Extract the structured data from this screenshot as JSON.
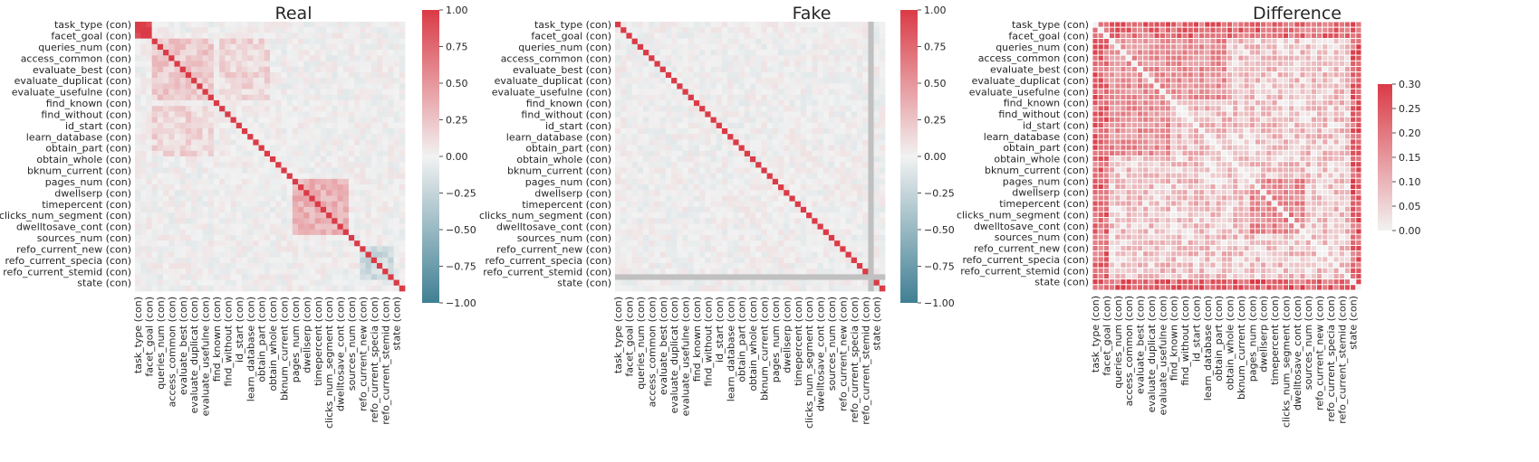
{
  "chart_data": {
    "type": "heatmap",
    "variables": [
      "task_type (con)",
      "facet_goal (con)",
      "queries_num (con)",
      "access_common (con)",
      "evaluate_best (con)",
      "evaluate_duplicat (con)",
      "evaluate_usefulne (con)",
      "find_known (con)",
      "find_without (con)",
      "id_start (con)",
      "learn_database (con)",
      "obtain_part (con)",
      "obtain_whole (con)",
      "bknum_current (con)",
      "pages_num (con)",
      "dwellserp (con)",
      "timepercent (con)",
      "clicks_num_segment (con)",
      "dwelltosave_cont (con)",
      "sources_num (con)",
      "refo_current_new (con)",
      "refo_current_specia (con)",
      "refo_current_stemid (con)",
      "state (con)"
    ],
    "matrix_size": 48,
    "label_every": 2,
    "panels": [
      {
        "title": "Real",
        "colormap": "diverging",
        "vmin": -1,
        "vmax": 1,
        "colorbar_ticks": [
          "1.00",
          "0.75",
          "0.50",
          "0.25",
          "0.00",
          "−0.25",
          "−0.50",
          "−0.75",
          "−1.00"
        ],
        "diagonal": 1.0,
        "blocks": [
          {
            "rows": [
              0,
              2
            ],
            "cols": [
              0,
              2
            ],
            "value": 0.95
          },
          {
            "rows": [
              3,
              13
            ],
            "cols": [
              3,
              13
            ],
            "value": 0.22
          },
          {
            "rows": [
              3,
              13
            ],
            "cols": [
              15,
              23
            ],
            "value": 0.15
          },
          {
            "rows": [
              28,
              37
            ],
            "cols": [
              28,
              37
            ],
            "value": 0.35
          },
          {
            "rows": [
              40,
              45
            ],
            "cols": [
              40,
              45
            ],
            "value": -0.2
          }
        ]
      },
      {
        "title": "Fake",
        "colormap": "diverging",
        "vmin": -1,
        "vmax": 1,
        "colorbar_ticks": [
          "1.00",
          "0.75",
          "0.50",
          "0.25",
          "0.00",
          "−0.25",
          "−0.50",
          "−0.75",
          "−1.00"
        ],
        "diagonal": 1.0,
        "masked_index": 45,
        "masked_color": "#c0c0c0",
        "blocks": []
      },
      {
        "title": "Difference",
        "colormap": "sequential",
        "vmin": 0,
        "vmax": 0.3,
        "colorbar_ticks": [
          "0.30",
          "0.25",
          "0.20",
          "0.15",
          "0.10",
          "0.05",
          "0.00"
        ],
        "diagonal": 0.0,
        "blocks": [
          {
            "rows": [
              0,
              2
            ],
            "cols": [
              0,
              47
            ],
            "value": 0.28
          },
          {
            "rows": [
              46,
              47
            ],
            "cols": [
              0,
              47
            ],
            "value": 0.3
          },
          {
            "rows": [
              0,
              47
            ],
            "cols": [
              46,
              47
            ],
            "value": 0.3
          },
          {
            "rows": [
              3,
              13
            ],
            "cols": [
              3,
              23
            ],
            "value": 0.2
          },
          {
            "rows": [
              28,
              37
            ],
            "cols": [
              28,
              37
            ],
            "value": 0.22
          }
        ]
      }
    ]
  }
}
